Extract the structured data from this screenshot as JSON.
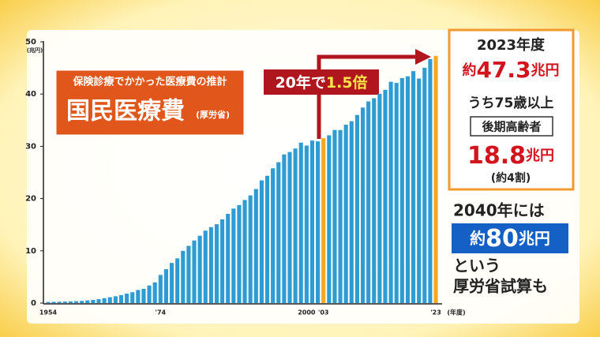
{
  "chart_data": {
    "type": "bar",
    "y_unit": "(兆円)",
    "x_unit": "(年度)",
    "categories": [
      "1954",
      null,
      null,
      null,
      null,
      null,
      null,
      null,
      null,
      null,
      null,
      null,
      null,
      null,
      null,
      null,
      null,
      null,
      null,
      null,
      "'74",
      null,
      null,
      null,
      null,
      null,
      null,
      null,
      null,
      null,
      null,
      null,
      null,
      null,
      null,
      null,
      null,
      null,
      null,
      null,
      null,
      null,
      null,
      null,
      null,
      null,
      "2000",
      null,
      null,
      "'03",
      null,
      null,
      null,
      null,
      null,
      null,
      null,
      null,
      null,
      null,
      null,
      null,
      null,
      null,
      null,
      null,
      null,
      null,
      null,
      "'23"
    ],
    "values": [
      0.21,
      0.24,
      0.26,
      0.29,
      0.32,
      0.36,
      0.41,
      0.51,
      0.61,
      0.74,
      0.94,
      1.12,
      1.3,
      1.52,
      1.81,
      2.08,
      2.5,
      2.73,
      3.36,
      3.96,
      5.38,
      6.48,
      7.68,
      8.56,
      10.0,
      10.95,
      11.98,
      12.88,
      13.86,
      14.54,
      15.09,
      16.02,
      17.07,
      18.08,
      18.76,
      19.73,
      20.61,
      21.83,
      23.48,
      24.36,
      25.79,
      26.96,
      28.45,
      28.91,
      29.58,
      30.7,
      30.14,
      31.1,
      30.95,
      31.54,
      32.11,
      33.13,
      33.11,
      34.14,
      34.81,
      36.0,
      37.42,
      38.59,
      39.21,
      40.06,
      40.81,
      42.36,
      42.14,
      43.07,
      43.4,
      44.39,
      42.97,
      45.04,
      46.7,
      47.3
    ],
    "colors": [
      "#2f9bd3",
      "#2f9bd3",
      "#2f9bd3",
      "#2f9bd3",
      "#2f9bd3",
      "#2f9bd3",
      "#2f9bd3",
      "#2f9bd3",
      "#2f9bd3",
      "#2f9bd3",
      "#2f9bd3",
      "#2f9bd3",
      "#2f9bd3",
      "#2f9bd3",
      "#2f9bd3",
      "#2f9bd3",
      "#2f9bd3",
      "#2f9bd3",
      "#2f9bd3",
      "#2f9bd3",
      "#2f9bd3",
      "#2f9bd3",
      "#2f9bd3",
      "#2f9bd3",
      "#2f9bd3",
      "#2f9bd3",
      "#2f9bd3",
      "#2f9bd3",
      "#2f9bd3",
      "#2f9bd3",
      "#2f9bd3",
      "#2f9bd3",
      "#2f9bd3",
      "#2f9bd3",
      "#2f9bd3",
      "#2f9bd3",
      "#2f9bd3",
      "#2f9bd3",
      "#2f9bd3",
      "#2f9bd3",
      "#2f9bd3",
      "#2f9bd3",
      "#2f9bd3",
      "#2f9bd3",
      "#2f9bd3",
      "#2f9bd3",
      "#2f9bd3",
      "#2f9bd3",
      "#2f9bd3",
      "#f5a623",
      "#2f9bd3",
      "#2f9bd3",
      "#2f9bd3",
      "#2f9bd3",
      "#2f9bd3",
      "#2f9bd3",
      "#2f9bd3",
      "#2f9bd3",
      "#2f9bd3",
      "#2f9bd3",
      "#2f9bd3",
      "#2f9bd3",
      "#2f9bd3",
      "#2f9bd3",
      "#2f9bd3",
      "#2f9bd3",
      "#2f9bd3",
      "#2f9bd3",
      "#2f9bd3",
      "#f5a623"
    ],
    "ylim": [
      0,
      50
    ],
    "yticks": [
      0,
      10,
      20,
      30,
      40,
      50
    ],
    "grid": false,
    "title_box": {
      "subtitle": "保険診療でかかった医療費の推計",
      "title": "国民医療費",
      "source": "(厚労省)"
    },
    "callout": {
      "text": "20年で",
      "highlight": "1.5倍"
    },
    "panel": {
      "year": "2023年度",
      "total": {
        "prefix": "約",
        "number": "47.3",
        "unit": "兆円"
      },
      "elderly_intro": "うち75歳以上",
      "elderly_label": "後期高齢者",
      "elderly": {
        "number": "18.8",
        "unit": "兆円"
      },
      "elderly_share": "(約4割)"
    },
    "forecast": {
      "intro": "2040年には",
      "value": {
        "prefix": "約",
        "number": "80",
        "unit": "兆円"
      },
      "line1": "という",
      "line2": "厚労省試算も"
    }
  }
}
